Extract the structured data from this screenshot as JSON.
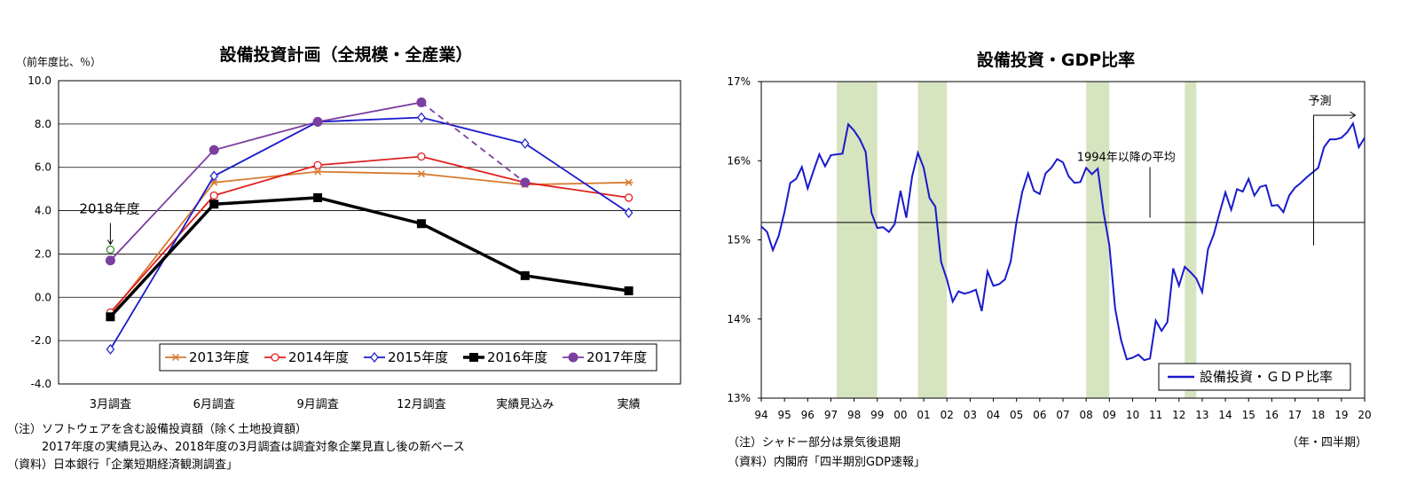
{
  "chart_data": [
    {
      "type": "line",
      "title": "設備投資計画（全規模・全産業）",
      "ylabel": "（前年度比、％）",
      "categories": [
        "3月調査",
        "6月調査",
        "9月調査",
        "12月調査",
        "実績見込み",
        "実績"
      ],
      "ylim": [
        -4.0,
        10.0
      ],
      "yticks": [
        "10.0",
        "8.0",
        "6.0",
        "4.0",
        "2.0",
        "0.0",
        "-2.0",
        "-4.0"
      ],
      "grid": true,
      "legend_position": "bottom",
      "series": [
        {
          "name": "2013年度",
          "color": "#d87a2e",
          "marker": "star",
          "values": [
            -0.8,
            5.3,
            5.8,
            5.7,
            5.2,
            5.3
          ]
        },
        {
          "name": "2014年度",
          "color": "#e02020",
          "marker": "circle-open",
          "values": [
            -0.7,
            4.7,
            6.1,
            6.5,
            5.3,
            4.6
          ]
        },
        {
          "name": "2015年度",
          "color": "#1a1acc",
          "marker": "diamond-open",
          "values": [
            -2.4,
            5.6,
            8.1,
            8.3,
            7.1,
            3.9
          ]
        },
        {
          "name": "2016年度",
          "color": "#000000",
          "marker": "square",
          "values": [
            -0.9,
            4.3,
            4.6,
            3.4,
            1.0,
            0.3
          ]
        },
        {
          "name": "2017年度",
          "color": "#7b3fa0",
          "marker": "circle",
          "values": [
            1.7,
            6.8,
            8.1,
            9.0,
            5.3,
            null
          ]
        }
      ],
      "extra_point": {
        "label": "2018年度",
        "category": "3月調査",
        "value": 2.2,
        "color": "#3a8a3a"
      },
      "notes": [
        "（注）ソフトウェアを含む設備投資額（除く土地投資額）",
        "　　　2017年度の実績見込み、2018年度の3月調査は調査対象企業見直し後の新ベース",
        "（資料）日本銀行「企業短期経済観測調査」"
      ]
    },
    {
      "type": "line",
      "title": "設備投資・GDP比率",
      "ylim": [
        13,
        17
      ],
      "yticks": [
        "17%",
        "16%",
        "15%",
        "14%",
        "13%"
      ],
      "xticks": [
        "94",
        "95",
        "96",
        "97",
        "98",
        "99",
        "00",
        "01",
        "02",
        "03",
        "04",
        "05",
        "06",
        "07",
        "08",
        "09",
        "10",
        "11",
        "12",
        "13",
        "14",
        "15",
        "16",
        "17",
        "18",
        "19",
        "20"
      ],
      "xlabel": "（年・四半期）",
      "legend_position": "bottom-right",
      "average": {
        "label": "1994年以降の平均",
        "value": 15.22
      },
      "forecast_label": "予測",
      "recession_periods": [
        [
          1997.25,
          1999.0
        ],
        [
          2000.75,
          2002.0
        ],
        [
          2008.0,
          2009.0
        ],
        [
          2012.25,
          2012.75
        ]
      ],
      "recession_color": "#d6e4c0",
      "series": [
        {
          "name": "設備投資・ＧＤＰ比率",
          "color": "#1a1acc",
          "x_start": 1994.0,
          "x_step": 0.25,
          "values": [
            15.17,
            15.1,
            14.87,
            15.05,
            15.35,
            15.72,
            15.77,
            15.92,
            15.65,
            15.87,
            16.08,
            15.93,
            16.07,
            16.08,
            16.09,
            16.46,
            16.38,
            16.27,
            16.11,
            15.34,
            15.15,
            15.16,
            15.1,
            15.2,
            15.62,
            15.28,
            15.8,
            16.1,
            15.91,
            15.53,
            15.42,
            14.72,
            14.5,
            14.22,
            14.35,
            14.32,
            14.34,
            14.37,
            14.1,
            14.6,
            14.42,
            14.44,
            14.5,
            14.73,
            15.23,
            15.61,
            15.84,
            15.62,
            15.58,
            15.84,
            15.91,
            16.02,
            15.98,
            15.8,
            15.72,
            15.73,
            15.91,
            15.83,
            15.9,
            15.35,
            14.93,
            14.13,
            13.74,
            13.49,
            13.51,
            13.55,
            13.48,
            13.5,
            13.98,
            13.85,
            13.96,
            14.64,
            14.42,
            14.66,
            14.59,
            14.51,
            14.34,
            14.88,
            15.07,
            15.34,
            15.6,
            15.38,
            15.64,
            15.61,
            15.77,
            15.56,
            15.67,
            15.69,
            15.43,
            15.44,
            15.35,
            15.56,
            15.66,
            15.72,
            15.79,
            15.85,
            15.91,
            16.17,
            16.27,
            16.27,
            16.29,
            16.36,
            16.47,
            16.17,
            16.29
          ]
        }
      ],
      "notes_left": [
        "（注）シャドー部分は景気後退期",
        "（資料）内閣府「四半期別GDP速報」"
      ]
    }
  ]
}
